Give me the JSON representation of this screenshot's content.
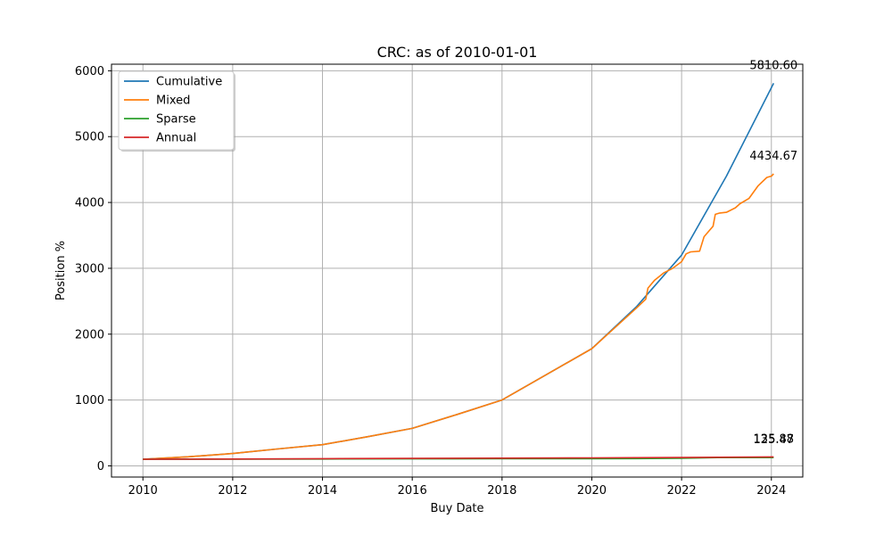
{
  "chart_data": {
    "type": "line",
    "title": "CRC: as of 2010-01-01",
    "xlabel": "Buy Date",
    "ylabel": "Position %",
    "xlim": [
      2009.3,
      2024.7
    ],
    "ylim": [
      -170,
      6100
    ],
    "x_ticks": [
      2010,
      2012,
      2014,
      2016,
      2018,
      2020,
      2022,
      2024
    ],
    "y_ticks": [
      0,
      1000,
      2000,
      3000,
      4000,
      5000,
      6000
    ],
    "grid": true,
    "legend": "top-left",
    "series": [
      {
        "name": "Cumulative",
        "color": "#1f77b4",
        "x": [
          2010,
          2011,
          2012,
          2013,
          2014,
          2015,
          2016,
          2017,
          2018,
          2019,
          2020,
          2021,
          2022,
          2023,
          2024.05
        ],
        "y": [
          100,
          137,
          187,
          256,
          322,
          442,
          570,
          780,
          1000,
          1390,
          1780,
          2420,
          3200,
          4400,
          5810.6
        ],
        "end_label": "5810.60"
      },
      {
        "name": "Mixed",
        "color": "#ff7f0e",
        "x": [
          2010,
          2011,
          2012,
          2013,
          2014,
          2015,
          2016,
          2017,
          2018,
          2019,
          2020,
          2021,
          2021.2,
          2021.25,
          2021.4,
          2021.6,
          2021.8,
          2022,
          2022.1,
          2022.2,
          2022.4,
          2022.5,
          2022.6,
          2022.7,
          2022.75,
          2022.85,
          2023,
          2023.2,
          2023.3,
          2023.5,
          2023.7,
          2023.9,
          2024,
          2024.05
        ],
        "y": [
          100,
          137,
          187,
          256,
          322,
          442,
          570,
          780,
          1000,
          1390,
          1780,
          2400,
          2530,
          2700,
          2820,
          2930,
          3000,
          3100,
          3220,
          3250,
          3260,
          3480,
          3560,
          3640,
          3820,
          3840,
          3850,
          3920,
          3980,
          4060,
          4250,
          4380,
          4400,
          4434.67
        ],
        "end_label": "4434.67"
      },
      {
        "name": "Sparse",
        "color": "#2ca02c",
        "x": [
          2010,
          2012,
          2014,
          2016,
          2018,
          2020,
          2021,
          2022,
          2022.8,
          2023.5,
          2024.05
        ],
        "y": [
          100,
          102,
          104,
          106,
          107,
          108,
          110,
          115,
          125,
          125,
          125.47
        ],
        "end_label": "125.47"
      },
      {
        "name": "Annual",
        "color": "#d62728",
        "x": [
          2010,
          2012,
          2014,
          2016,
          2018,
          2020,
          2022,
          2024.05
        ],
        "y": [
          100,
          104,
          109,
          113,
          117,
          121,
          127,
          135.88
        ],
        "end_label": "135.88"
      }
    ]
  }
}
